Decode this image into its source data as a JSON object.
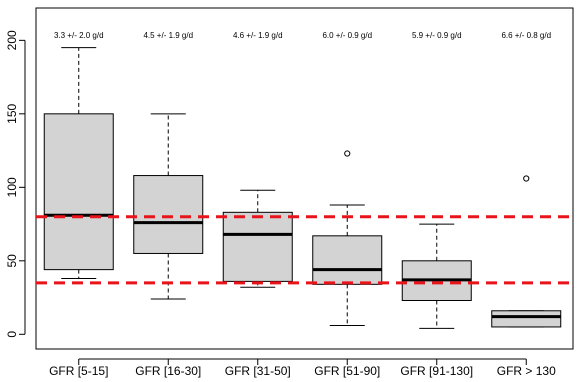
{
  "chart_data": {
    "type": "boxplot",
    "title": "",
    "xlabel": "",
    "ylabel": "",
    "ylim": [
      -10,
      222
    ],
    "yticks": [
      0,
      50,
      100,
      150,
      200
    ],
    "categories": [
      "GFR [5-15]",
      "GFR [16-30]",
      "GFR [31-50]",
      "GFR [51-90]",
      "GFR [91-130]",
      "GFR > 130"
    ],
    "annotations": [
      "3.3 +/- 2.0 g/d",
      "4.5 +/- 1.9 g/d",
      "4.6 +/- 1.9 g/d",
      "6.0 +/- 0.9 g/d",
      "5.9 +/- 0.9 g/d",
      "6.6 +/- 0.8 g/d"
    ],
    "boxes": [
      {
        "whisker_low": 38,
        "q1": 44,
        "median": 81,
        "q3": 150,
        "whisker_high": 195,
        "outliers": []
      },
      {
        "whisker_low": 24,
        "q1": 55,
        "median": 76,
        "q3": 108,
        "whisker_high": 150,
        "outliers": []
      },
      {
        "whisker_low": 32,
        "q1": 36,
        "median": 68,
        "q3": 83,
        "whisker_high": 98,
        "outliers": []
      },
      {
        "whisker_low": 6,
        "q1": 34,
        "median": 44,
        "q3": 67,
        "whisker_high": 88,
        "outliers": [
          123
        ]
      },
      {
        "whisker_low": 4,
        "q1": 23,
        "median": 37,
        "q3": 50,
        "whisker_high": 75,
        "outliers": []
      },
      {
        "whisker_low": 5,
        "q1": 5,
        "median": 12,
        "q3": 16,
        "whisker_high": 16,
        "outliers": [
          106
        ]
      }
    ],
    "reference_lines": [
      80,
      35
    ],
    "colors": {
      "box_fill": "#d3d3d3",
      "reference_line": "#e8141a",
      "axis": "#000000"
    }
  }
}
